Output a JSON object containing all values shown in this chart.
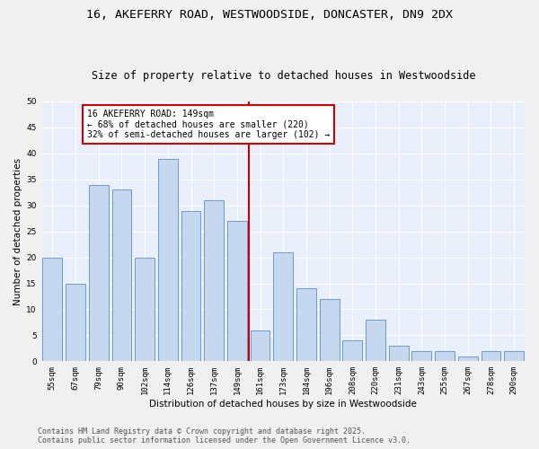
{
  "title": "16, AKEFERRY ROAD, WESTWOODSIDE, DONCASTER, DN9 2DX",
  "subtitle": "Size of property relative to detached houses in Westwoodside",
  "xlabel": "Distribution of detached houses by size in Westwoodside",
  "ylabel": "Number of detached properties",
  "categories": [
    "55sqm",
    "67sqm",
    "79sqm",
    "90sqm",
    "102sqm",
    "114sqm",
    "126sqm",
    "137sqm",
    "149sqm",
    "161sqm",
    "173sqm",
    "184sqm",
    "196sqm",
    "208sqm",
    "220sqm",
    "231sqm",
    "243sqm",
    "255sqm",
    "267sqm",
    "278sqm",
    "290sqm"
  ],
  "values": [
    20,
    15,
    34,
    33,
    20,
    39,
    29,
    31,
    27,
    6,
    21,
    14,
    12,
    4,
    8,
    3,
    2,
    2,
    1,
    2,
    2
  ],
  "bar_color": "#c5d8f0",
  "bar_edge_color": "#5b8fc9",
  "vline_color": "#cc0000",
  "annotation_text": "16 AKEFERRY ROAD: 149sqm\n← 68% of detached houses are smaller (220)\n32% of semi-detached houses are larger (102) →",
  "annotation_box_color": "#cc0000",
  "ylim": [
    0,
    50
  ],
  "yticks": [
    0,
    5,
    10,
    15,
    20,
    25,
    30,
    35,
    40,
    45,
    50
  ],
  "background_color": "#eaf0fb",
  "grid_color": "#ffffff",
  "footer_line1": "Contains HM Land Registry data © Crown copyright and database right 2025.",
  "footer_line2": "Contains public sector information licensed under the Open Government Licence v3.0.",
  "title_fontsize": 9.5,
  "subtitle_fontsize": 8.5,
  "axis_label_fontsize": 7.5,
  "tick_fontsize": 6.5,
  "annotation_fontsize": 7,
  "footer_fontsize": 6
}
